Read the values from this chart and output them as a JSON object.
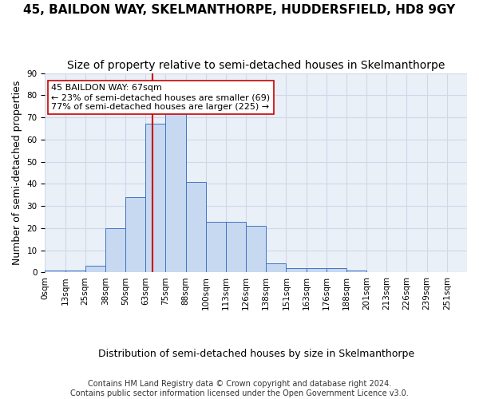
{
  "title": "45, BAILDON WAY, SKELMANTHORPE, HUDDERSFIELD, HD8 9GY",
  "subtitle": "Size of property relative to semi-detached houses in Skelmanthorpe",
  "xlabel": "Distribution of semi-detached houses by size in Skelmanthorpe",
  "ylabel": "Number of semi-detached properties",
  "footer_line1": "Contains HM Land Registry data © Crown copyright and database right 2024.",
  "footer_line2": "Contains public sector information licensed under the Open Government Licence v3.0.",
  "bin_labels": [
    "0sqm",
    "13sqm",
    "25sqm",
    "38sqm",
    "50sqm",
    "63sqm",
    "75sqm",
    "88sqm",
    "100sqm",
    "113sqm",
    "126sqm",
    "138sqm",
    "151sqm",
    "163sqm",
    "176sqm",
    "188sqm",
    "201sqm",
    "213sqm",
    "226sqm",
    "239sqm",
    "251sqm"
  ],
  "bar_values": [
    1,
    1,
    3,
    20,
    34,
    67,
    74,
    41,
    23,
    23,
    21,
    4,
    2,
    2,
    2,
    1,
    0,
    0,
    0,
    0
  ],
  "bar_color": "#c6d9f0",
  "bar_edge_color": "#4472c4",
  "property_size": 67,
  "property_label": "45 BAILDON WAY: 67sqm",
  "pct_smaller": 23,
  "count_smaller": 69,
  "pct_larger": 77,
  "count_larger": 225,
  "vline_color": "#cc0000",
  "annotation_box_edge_color": "#cc0000",
  "ylim": [
    0,
    90
  ],
  "yticks": [
    0,
    10,
    20,
    30,
    40,
    50,
    60,
    70,
    80,
    90
  ],
  "grid_color": "#d0d8e8",
  "background_color": "#eaf0f8",
  "title_fontsize": 11,
  "subtitle_fontsize": 10,
  "axis_label_fontsize": 9,
  "tick_fontsize": 7.5,
  "annotation_fontsize": 8,
  "footer_fontsize": 7
}
